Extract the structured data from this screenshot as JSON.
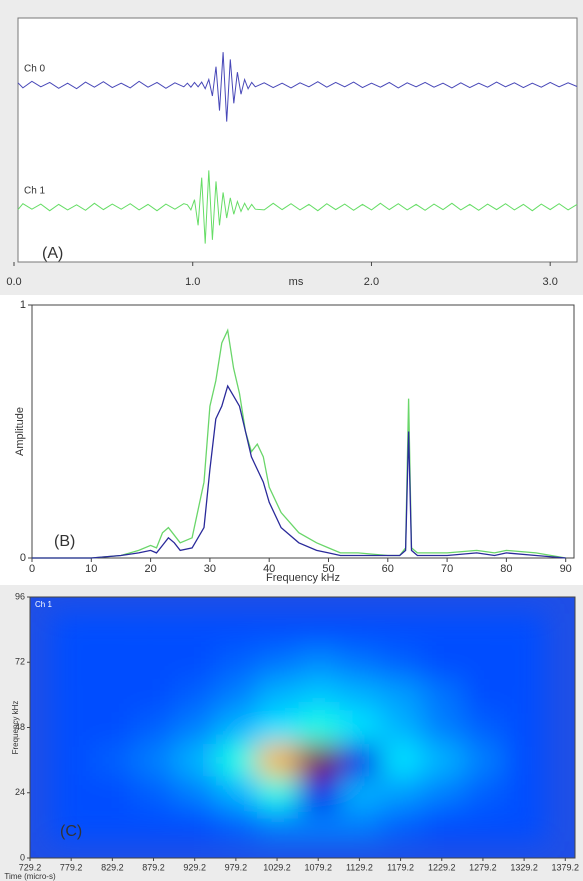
{
  "chart_data": [
    {
      "type": "line",
      "label": "(A)",
      "x_label": "ms",
      "xlim": [
        0,
        3.15
      ],
      "xticks": [
        {
          "value": 0,
          "label": "0.0"
        },
        {
          "value": 1,
          "label": "1.0"
        },
        {
          "value": 2,
          "label": "2.0"
        },
        {
          "value": 3,
          "label": "3.0"
        }
      ],
      "x": [
        0,
        0.05,
        0.1,
        0.15,
        0.2,
        0.25,
        0.3,
        0.35,
        0.4,
        0.45,
        0.5,
        0.55,
        0.6,
        0.65,
        0.7,
        0.75,
        0.8,
        0.85,
        0.9,
        0.95,
        0.97,
        0.99,
        1.01,
        1.03,
        1.05,
        1.07,
        1.09,
        1.11,
        1.13,
        1.15,
        1.17,
        1.19,
        1.21,
        1.23,
        1.25,
        1.27,
        1.29,
        1.31,
        1.33,
        1.35,
        1.4,
        1.45,
        1.5,
        1.55,
        1.6,
        1.65,
        1.7,
        1.75,
        1.8,
        1.85,
        1.9,
        1.95,
        2.0,
        2.05,
        2.1,
        2.15,
        2.2,
        2.25,
        2.3,
        2.35,
        2.4,
        2.45,
        2.5,
        2.55,
        2.6,
        2.65,
        2.7,
        2.75,
        2.8,
        2.85,
        2.9,
        2.95,
        3.0,
        3.05,
        3.1,
        3.15
      ],
      "series": [
        {
          "name": "Ch 0",
          "color": "#4848b8",
          "values": [
            0.06,
            -0.08,
            0.1,
            -0.05,
            0.07,
            -0.09,
            0.05,
            -0.1,
            0.08,
            -0.06,
            0.09,
            -0.07,
            0.05,
            -0.08,
            0.1,
            -0.06,
            0.07,
            -0.09,
            0.06,
            -0.05,
            0.05,
            -0.06,
            0.07,
            -0.05,
            0.08,
            -0.1,
            0.15,
            -0.3,
            0.5,
            -0.7,
            0.9,
            -1,
            0.7,
            -0.5,
            0.35,
            -0.25,
            0.15,
            -0.1,
            0.07,
            -0.05,
            0.06,
            -0.07,
            0.05,
            -0.08,
            0.06,
            -0.05,
            0.09,
            -0.06,
            0.07,
            -0.05,
            0.08,
            -0.07,
            0.05,
            -0.06,
            0.07,
            -0.08,
            0.06,
            -0.05,
            0.07,
            -0.06,
            0.05,
            -0.08,
            0.06,
            -0.07,
            0.05,
            -0.06,
            0.08,
            -0.05,
            0.06,
            -0.07,
            0.05,
            -0.06,
            0.07,
            -0.05,
            0.06,
            -0.04
          ]
        },
        {
          "name": "Ch 1",
          "color": "#66dd66",
          "values": [
            -0.07,
            0.09,
            -0.06,
            0.08,
            -0.1,
            0.07,
            -0.08,
            0.06,
            -0.09,
            0.1,
            -0.07,
            0.08,
            -0.06,
            0.09,
            -0.08,
            0.07,
            -0.1,
            0.08,
            -0.06,
            0.09,
            0.06,
            -0.08,
            0.2,
            -0.5,
            0.8,
            -1,
            1,
            -0.9,
            0.7,
            -0.5,
            0.4,
            -0.3,
            0.25,
            -0.2,
            0.15,
            -0.12,
            0.1,
            -0.08,
            0.07,
            -0.06,
            -0.08,
            0.1,
            -0.07,
            0.09,
            -0.08,
            0.07,
            -0.1,
            0.09,
            -0.07,
            0.08,
            -0.09,
            0.07,
            -0.08,
            0.1,
            -0.07,
            0.09,
            -0.08,
            0.07,
            -0.09,
            0.08,
            -0.07,
            0.1,
            -0.08,
            0.07,
            -0.09,
            0.08,
            -0.07,
            0.09,
            -0.08,
            0.07,
            -0.1,
            0.08,
            -0.07,
            0.09,
            -0.08,
            0.07
          ]
        }
      ]
    },
    {
      "type": "line",
      "label": "(B)",
      "x_label": "Frequency kHz",
      "y_label": "Amplitude",
      "xlim": [
        0,
        91.4
      ],
      "ylim": [
        0,
        1
      ],
      "xticks": [
        0,
        10,
        20,
        30,
        40,
        50,
        60,
        70,
        80,
        90
      ],
      "yticks": [
        0,
        1
      ],
      "x": [
        0,
        10,
        15,
        18,
        20,
        21,
        22,
        23,
        24,
        25,
        27,
        29,
        30,
        31,
        32,
        33,
        34,
        35,
        36,
        37,
        38,
        39,
        40,
        42,
        45,
        48,
        50,
        52,
        55,
        60,
        62,
        63,
        63.5,
        64,
        65,
        70,
        75,
        78,
        80,
        85,
        90
      ],
      "series": [
        {
          "color": "#6ad66a",
          "values": [
            0,
            0,
            0.01,
            0.03,
            0.05,
            0.04,
            0.1,
            0.12,
            0.09,
            0.06,
            0.08,
            0.3,
            0.6,
            0.7,
            0.85,
            0.9,
            0.75,
            0.65,
            0.5,
            0.42,
            0.45,
            0.4,
            0.28,
            0.18,
            0.1,
            0.06,
            0.04,
            0.02,
            0.02,
            0.01,
            0.01,
            0.04,
            0.63,
            0.04,
            0.02,
            0.02,
            0.03,
            0.02,
            0.03,
            0.02,
            0
          ]
        },
        {
          "color": "#2a2a9a",
          "values": [
            0,
            0,
            0.01,
            0.02,
            0.03,
            0.02,
            0.05,
            0.08,
            0.06,
            0.03,
            0.04,
            0.12,
            0.35,
            0.55,
            0.6,
            0.68,
            0.64,
            0.6,
            0.5,
            0.4,
            0.35,
            0.3,
            0.22,
            0.12,
            0.06,
            0.03,
            0.02,
            0.01,
            0.01,
            0.01,
            0.01,
            0.03,
            0.5,
            0.03,
            0.01,
            0.01,
            0.02,
            0.01,
            0.02,
            0.01,
            0
          ]
        }
      ]
    },
    {
      "type": "heatmap",
      "label": "(C)",
      "annotation": "Ch 1",
      "x_label": "Time (micro-s)",
      "y_label": "Frequency kHz",
      "xlim": [
        729.2,
        1391
      ],
      "ylim": [
        0,
        96
      ],
      "xticks": [
        729.2,
        779.2,
        829.2,
        879.2,
        929.2,
        979.2,
        1029.2,
        1079.2,
        1129.2,
        1179.2,
        1229.2,
        1279.2,
        1329.2,
        1379.2
      ],
      "yticks": [
        0,
        24,
        48,
        72,
        96
      ],
      "x": [
        780,
        830,
        880,
        930,
        980,
        1030,
        1080,
        1130,
        1180,
        1230,
        1280,
        1330
      ],
      "y": [
        12,
        24,
        36,
        48,
        60,
        72,
        84
      ],
      "z": [
        [
          0.2,
          0.2,
          0.2,
          0.2,
          0.22,
          0.25,
          0.25,
          0.25,
          0.22,
          0.2,
          0.2,
          0.2
        ],
        [
          0.2,
          0.2,
          0.22,
          0.25,
          0.3,
          0.4,
          0.1,
          0.3,
          0.28,
          0.25,
          0.22,
          0.2
        ],
        [
          0.2,
          0.22,
          0.25,
          0.3,
          0.4,
          0.7,
          1,
          0.1,
          0.35,
          0.3,
          0.25,
          0.2
        ],
        [
          0.2,
          0.2,
          0.22,
          0.25,
          0.3,
          0.35,
          0.4,
          0.35,
          0.3,
          0.25,
          0.22,
          0.2
        ],
        [
          0.2,
          0.2,
          0.2,
          0.22,
          0.25,
          0.3,
          0.32,
          0.3,
          0.28,
          0.24,
          0.2,
          0.2
        ],
        [
          0.2,
          0.2,
          0.2,
          0.2,
          0.22,
          0.24,
          0.26,
          0.24,
          0.22,
          0.2,
          0.2,
          0.2
        ],
        [
          0.2,
          0.2,
          0.2,
          0.2,
          0.2,
          0.2,
          0.2,
          0.2,
          0.2,
          0.2,
          0.2,
          0.2
        ]
      ]
    }
  ]
}
